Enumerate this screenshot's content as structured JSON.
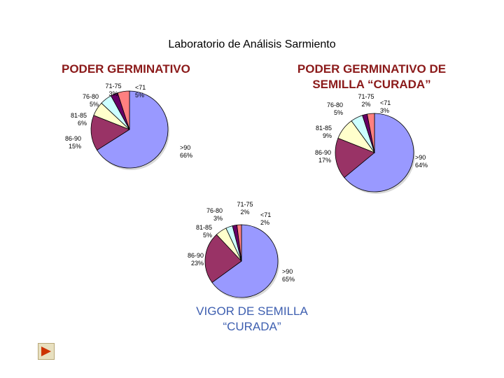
{
  "page": {
    "title": "Laboratorio de Análisis Sarmiento"
  },
  "chart_data": [
    {
      "type": "pie",
      "title": "PODER GERMINATIVO",
      "slices": [
        {
          "label": ">90",
          "value": 66,
          "pct": "66%"
        },
        {
          "label": "86-90",
          "value": 15,
          "pct": "15%"
        },
        {
          "label": "81-85",
          "value": 6,
          "pct": "6%"
        },
        {
          "label": "76-80",
          "value": 5,
          "pct": "5%"
        },
        {
          "label": "71-75",
          "value": 3,
          "pct": "3%"
        },
        {
          "label": "<71",
          "value": 5,
          "pct": "5%"
        }
      ]
    },
    {
      "type": "pie",
      "title": "PODER GERMINATIVO DE SEMILLA “CURADA”",
      "slices": [
        {
          "label": ">90",
          "value": 64,
          "pct": "64%"
        },
        {
          "label": "86-90",
          "value": 17,
          "pct": "17%"
        },
        {
          "label": "81-85",
          "value": 9,
          "pct": "9%"
        },
        {
          "label": "76-80",
          "value": 5,
          "pct": "5%"
        },
        {
          "label": "71-75",
          "value": 2,
          "pct": "2%"
        },
        {
          "label": "<71",
          "value": 3,
          "pct": "3%"
        }
      ]
    },
    {
      "type": "pie",
      "title": "VIGOR DE SEMILLA “CURADA”",
      "slices": [
        {
          "label": ">90",
          "value": 65,
          "pct": "65%"
        },
        {
          "label": "86-90",
          "value": 23,
          "pct": "23%"
        },
        {
          "label": "81-85",
          "value": 5,
          "pct": "5%"
        },
        {
          "label": "76-80",
          "value": 3,
          "pct": "3%"
        },
        {
          "label": "71-75",
          "value": 2,
          "pct": "2%"
        },
        {
          "label": "<71",
          "value": 2,
          "pct": "2%"
        }
      ]
    }
  ],
  "colors": {
    "slice_colors": [
      "#9999ff",
      "#993366",
      "#ffffcc",
      "#ccffff",
      "#660066",
      "#ff8080"
    ],
    "title_red": "#8b1a1a",
    "title_blue": "#3e5fb0"
  },
  "icons": {
    "nav": "play-arrow-icon"
  }
}
